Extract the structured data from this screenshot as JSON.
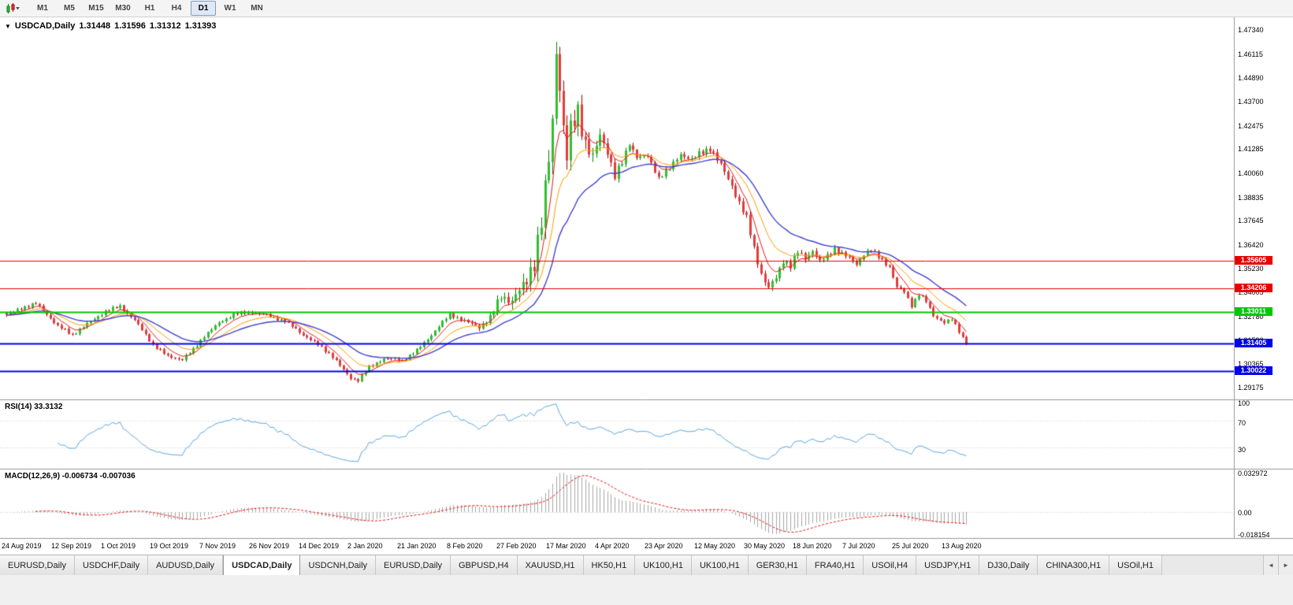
{
  "toolbar": {
    "timeframes": [
      {
        "label": "M1",
        "active": false
      },
      {
        "label": "M5",
        "active": false
      },
      {
        "label": "M15",
        "active": false
      },
      {
        "label": "M30",
        "active": false
      },
      {
        "label": "H1",
        "active": false
      },
      {
        "label": "H4",
        "active": false
      },
      {
        "label": "D1",
        "active": true
      },
      {
        "label": "W1",
        "active": false
      },
      {
        "label": "MN",
        "active": false
      }
    ]
  },
  "tabs": {
    "scroll_left": "◄",
    "scroll_right": "►",
    "items": [
      {
        "label": "EURUSD,Daily",
        "active": false
      },
      {
        "label": "USDCHF,Daily",
        "active": false
      },
      {
        "label": "AUDUSD,Daily",
        "active": false
      },
      {
        "label": "USDCAD,Daily",
        "active": true
      },
      {
        "label": "USDCNH,Daily",
        "active": false
      },
      {
        "label": "EURUSD,Daily",
        "active": false
      },
      {
        "label": "GBPUSD,H4",
        "active": false
      },
      {
        "label": "XAUUSD,H1",
        "active": false
      },
      {
        "label": "HK50,H1",
        "active": false
      },
      {
        "label": "UK100,H1",
        "active": false
      },
      {
        "label": "UK100,H1",
        "active": false
      },
      {
        "label": "GER30,H1",
        "active": false
      },
      {
        "label": "FRA40,H1",
        "active": false
      },
      {
        "label": "USOil,H4",
        "active": false
      },
      {
        "label": "USDJPY,H1",
        "active": false
      },
      {
        "label": "DJ30,Daily",
        "active": false
      },
      {
        "label": "CHINA300,H1",
        "active": false
      },
      {
        "label": "USOil,H1",
        "active": false
      }
    ]
  },
  "chart_data": {
    "type": "candlestick",
    "collapse_icon": "▼",
    "symbol_period": "USDCAD,Daily",
    "ohlc": {
      "open": "1.31448",
      "high": "1.31596",
      "low": "1.31312",
      "close": "1.31393"
    },
    "last_close": 1.31393,
    "bar_count": 263,
    "price_range": {
      "top": 1.4775,
      "bottom": 1.2885
    },
    "y_axis_ticks": [
      "1.47340",
      "1.46115",
      "1.44890",
      "1.43700",
      "1.42475",
      "1.41285",
      "1.40060",
      "1.38835",
      "1.37645",
      "1.36420",
      "1.35230",
      "1.34005",
      "1.32780",
      "1.31590",
      "1.30365",
      "1.29175"
    ],
    "x_labels": [
      "24 Aug 2019",
      "12 Sep 2019",
      "1 Oct 2019",
      "19 Oct 2019",
      "7 Nov 2019",
      "26 Nov 2019",
      "14 Dec 2019",
      "2 Jan 2020",
      "21 Jan 2020",
      "8 Feb 2020",
      "27 Feb 2020",
      "17 Mar 2020",
      "4 Apr 2020",
      "23 Apr 2020",
      "12 May 2020",
      "30 May 2020",
      "18 Jun 2020",
      "7 Jul 2020",
      "25 Jul 2020",
      "13 Aug 2020"
    ],
    "bars_per_x_label": 13.5,
    "up_color": "#2fbf2f",
    "up_border": "#067f06",
    "down_color": "#e23b3b",
    "down_border": "#a40000",
    "price_anchors": [
      [
        0,
        1.3285
      ],
      [
        4,
        1.332
      ],
      [
        8,
        1.3345
      ],
      [
        12,
        1.327
      ],
      [
        14,
        1.323
      ],
      [
        18,
        1.3185
      ],
      [
        22,
        1.324
      ],
      [
        27,
        1.3305
      ],
      [
        31,
        1.333
      ],
      [
        35,
        1.326
      ],
      [
        40,
        1.3135
      ],
      [
        44,
        1.3075
      ],
      [
        48,
        1.306
      ],
      [
        51,
        1.311
      ],
      [
        54,
        1.318
      ],
      [
        58,
        1.3245
      ],
      [
        62,
        1.329
      ],
      [
        67,
        1.33
      ],
      [
        71,
        1.3285
      ],
      [
        76,
        1.3255
      ],
      [
        81,
        1.3185
      ],
      [
        85,
        1.3135
      ],
      [
        89,
        1.3075
      ],
      [
        92,
        1.3005
      ],
      [
        94,
        1.2965
      ],
      [
        96,
        1.2955
      ],
      [
        99,
        1.302
      ],
      [
        103,
        1.3065
      ],
      [
        108,
        1.3055
      ],
      [
        112,
        1.3105
      ],
      [
        116,
        1.3185
      ],
      [
        121,
        1.329
      ],
      [
        125,
        1.3255
      ],
      [
        129,
        1.3225
      ],
      [
        132,
        1.327
      ],
      [
        135,
        1.3385
      ],
      [
        138,
        1.3355
      ],
      [
        141,
        1.343
      ],
      [
        144,
        1.356
      ],
      [
        146,
        1.375
      ],
      [
        148,
        1.408
      ],
      [
        149,
        1.428
      ],
      [
        150,
        1.464
      ],
      [
        151,
        1.445
      ],
      [
        152,
        1.423
      ],
      [
        153,
        1.408
      ],
      [
        154,
        1.422
      ],
      [
        156,
        1.433
      ],
      [
        158,
        1.416
      ],
      [
        160,
        1.408
      ],
      [
        162,
        1.42
      ],
      [
        164,
        1.412
      ],
      [
        166,
        1.399
      ],
      [
        168,
        1.406
      ],
      [
        170,
        1.416
      ],
      [
        172,
        1.409
      ],
      [
        175,
        1.409
      ],
      [
        178,
        1.3985
      ],
      [
        181,
        1.403
      ],
      [
        184,
        1.4105
      ],
      [
        187,
        1.4075
      ],
      [
        189,
        1.4105
      ],
      [
        192,
        1.4135
      ],
      [
        195,
        1.4045
      ],
      [
        198,
        1.3945
      ],
      [
        200,
        1.3855
      ],
      [
        202,
        1.3775
      ],
      [
        204,
        1.3625
      ],
      [
        206,
        1.3495
      ],
      [
        208,
        1.342
      ],
      [
        210,
        1.3475
      ],
      [
        212,
        1.3565
      ],
      [
        214,
        1.3535
      ],
      [
        216,
        1.3605
      ],
      [
        218,
        1.3575
      ],
      [
        220,
        1.3615
      ],
      [
        222,
        1.3555
      ],
      [
        224,
        1.3585
      ],
      [
        226,
        1.3625
      ],
      [
        229,
        1.3585
      ],
      [
        232,
        1.3545
      ],
      [
        234,
        1.3595
      ],
      [
        236,
        1.3615
      ],
      [
        239,
        1.3565
      ],
      [
        241,
        1.353
      ],
      [
        243,
        1.3425
      ],
      [
        245,
        1.3405
      ],
      [
        247,
        1.3335
      ],
      [
        249,
        1.339
      ],
      [
        251,
        1.3355
      ],
      [
        253,
        1.3285
      ],
      [
        256,
        1.3245
      ],
      [
        258,
        1.3265
      ],
      [
        260,
        1.3205
      ],
      [
        262,
        1.3139
      ]
    ],
    "moving_averages": [
      {
        "name": "fast-ma",
        "period": 6,
        "method": "ema",
        "color": "#e81818"
      },
      {
        "name": "mid-ma",
        "period": 13,
        "method": "ema",
        "color": "#ff9a00"
      },
      {
        "name": "slow-ma",
        "period": 25,
        "method": "ema",
        "color": "#4242d2"
      }
    ],
    "hlines": [
      {
        "price": 1.35605,
        "label": "1.35605",
        "color": "#e80000",
        "width": 1
      },
      {
        "price": 1.34206,
        "label": "1.34206",
        "color": "#e80000",
        "width": 1
      },
      {
        "price": 1.33011,
        "label": "1.33011",
        "color": "#00c800",
        "width": 2
      },
      {
        "price": 1.31405,
        "label": "1.31405",
        "color": "#0000f0",
        "width": 2
      },
      {
        "price": 1.30022,
        "label": "1.30022",
        "color": "#0000f0",
        "width": 2
      }
    ],
    "rsi": {
      "label": "RSI(14) 33.3132",
      "period": 14,
      "current": 33.3132,
      "color": "#5ba7e0",
      "levels": [
        70,
        30
      ],
      "scale": [
        0,
        100
      ],
      "axis_labels": [
        "100",
        "70",
        "30"
      ]
    },
    "macd": {
      "label": "MACD(12,26,9) -0.006734 -0.007036",
      "fast": 12,
      "slow": 26,
      "signal": 9,
      "current": -0.006734,
      "current_signal": -0.007036,
      "axis_labels": [
        "0.032972",
        "0.00",
        "-0.018154"
      ],
      "hist_color": "#a6a6a6",
      "signal_color": "#e81818"
    }
  }
}
